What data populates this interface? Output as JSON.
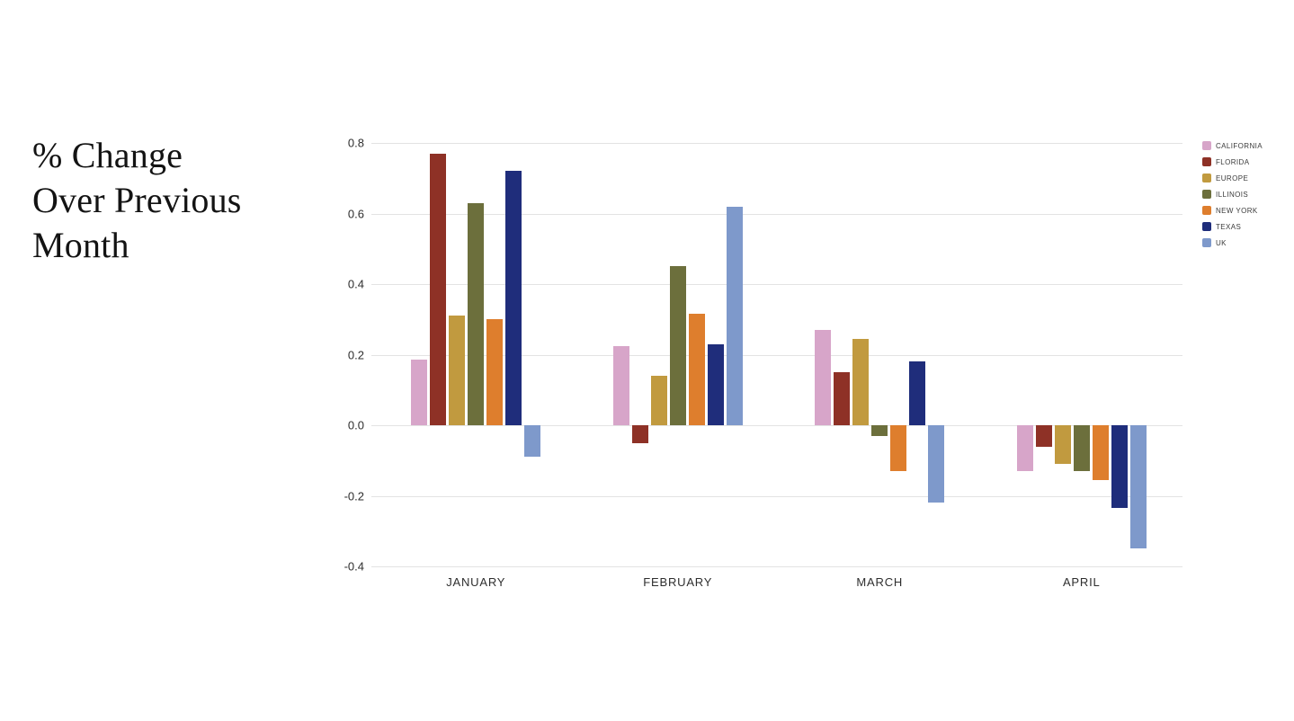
{
  "title": {
    "lines": [
      "% Change",
      "Over Previous",
      "Month"
    ]
  },
  "chart_data": {
    "type": "bar",
    "title": "% Change Over Previous Month",
    "xlabel": "",
    "ylabel": "",
    "categories": [
      "JANUARY",
      "FEBRUARY",
      "MARCH",
      "APRIL"
    ],
    "series": [
      {
        "name": "CALIFORNIA",
        "color": "#d7a5c9",
        "values": [
          0.185,
          0.225,
          0.27,
          -0.13
        ]
      },
      {
        "name": "FLORIDA",
        "color": "#8e3126",
        "values": [
          0.77,
          -0.05,
          0.15,
          -0.06
        ]
      },
      {
        "name": "EUROPE",
        "color": "#c19a3f",
        "values": [
          0.31,
          0.14,
          0.245,
          -0.11
        ]
      },
      {
        "name": "ILLINOIS",
        "color": "#6c6f3c",
        "values": [
          0.63,
          0.45,
          -0.03,
          -0.13
        ]
      },
      {
        "name": "NEW YORK",
        "color": "#de7e2d",
        "values": [
          0.3,
          0.315,
          -0.13,
          -0.155
        ]
      },
      {
        "name": "TEXAS",
        "color": "#1f2d7b",
        "values": [
          0.72,
          0.23,
          0.18,
          -0.235
        ]
      },
      {
        "name": "UK",
        "color": "#7e99cb",
        "values": [
          -0.09,
          0.62,
          -0.22,
          -0.35
        ]
      }
    ],
    "ylim": [
      -0.4,
      0.8
    ],
    "yticks": [
      0.8,
      0.6,
      0.4,
      0.2,
      0.0,
      -0.2,
      -0.4
    ],
    "grid": true,
    "legend_position": "right",
    "background": "#ffffff",
    "gridline_color": "#e3e3e3"
  }
}
